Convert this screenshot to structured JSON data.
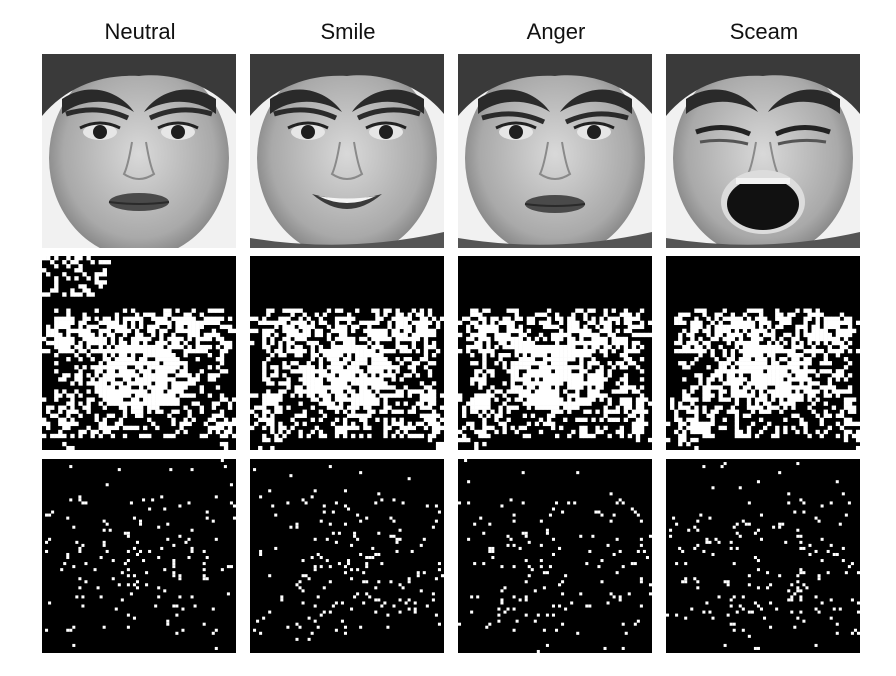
{
  "figure": {
    "columns": [
      {
        "label": "Neutral",
        "expression": "neutral"
      },
      {
        "label": "Smile",
        "expression": "smile"
      },
      {
        "label": "Anger",
        "expression": "anger"
      },
      {
        "label": "Sceam",
        "expression": "scream"
      }
    ],
    "rows": [
      {
        "kind": "face-photo"
      },
      {
        "kind": "binary-mask"
      },
      {
        "kind": "sparse-points"
      }
    ],
    "colors": {
      "background": "#ffffff",
      "panel": "#000000",
      "ink": "#ffffff"
    }
  }
}
